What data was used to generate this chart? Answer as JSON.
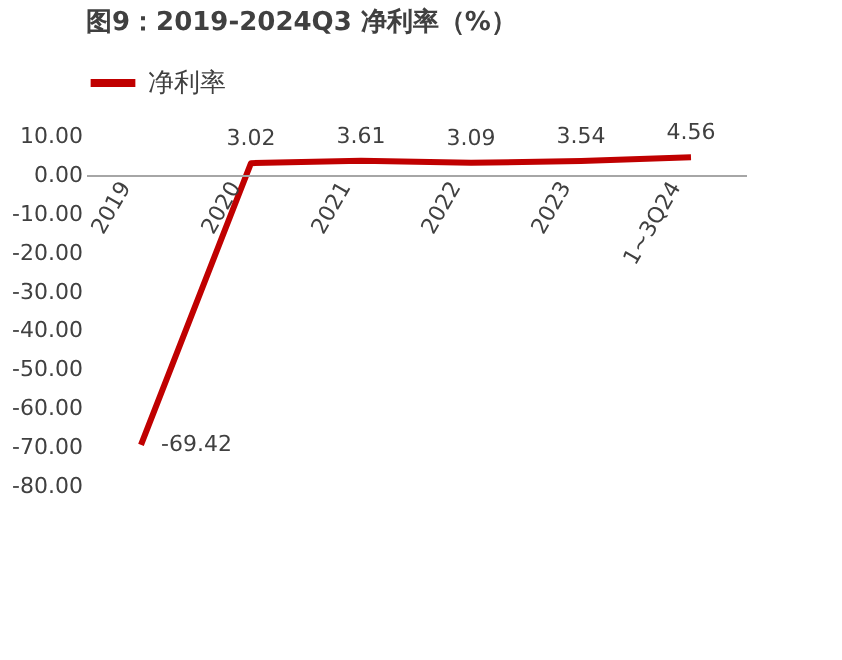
{
  "chart_data": {
    "type": "line",
    "title": "图9：2019-2024Q3 净利率（%）",
    "categories": [
      "2019",
      "2020",
      "2021",
      "2022",
      "2023",
      "1~3Q24"
    ],
    "series": [
      {
        "name": "净利率",
        "color": "#c00000",
        "values": [
          -69.42,
          3.02,
          3.61,
          3.09,
          3.54,
          4.56
        ]
      }
    ],
    "ylim": [
      -80,
      10
    ],
    "yticks": [
      {
        "value": 10,
        "label": "10.00"
      },
      {
        "value": 0,
        "label": "0.00"
      },
      {
        "value": -10,
        "label": "-10.00"
      },
      {
        "value": -20,
        "label": "-20.00"
      },
      {
        "value": -30,
        "label": "-30.00"
      },
      {
        "value": -40,
        "label": "-40.00"
      },
      {
        "value": -50,
        "label": "-50.00"
      },
      {
        "value": -60,
        "label": "-60.00"
      },
      {
        "value": -70,
        "label": "-70.00"
      },
      {
        "value": -80,
        "label": "-80.00"
      }
    ],
    "data_labels": true,
    "legend": "top",
    "grid": false,
    "marker": "none",
    "line_style": "solid"
  }
}
